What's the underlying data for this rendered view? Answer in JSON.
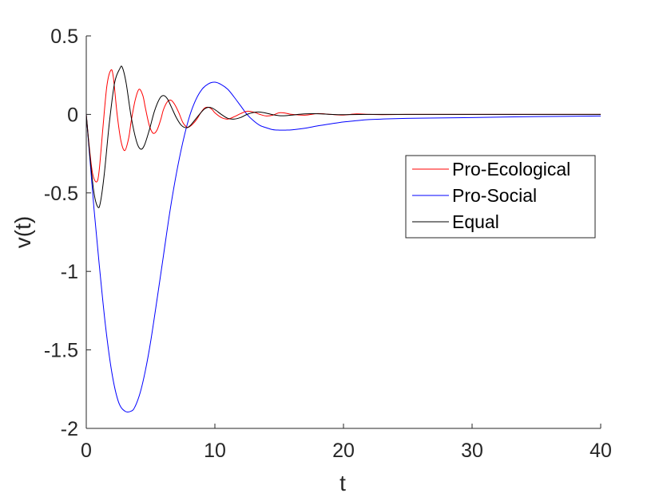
{
  "chart_data": {
    "type": "line",
    "title": "",
    "xlabel": "t",
    "ylabel": "v(t)",
    "xlim": [
      0,
      40
    ],
    "ylim": [
      -2,
      0.5
    ],
    "xticks": [
      0,
      10,
      20,
      30,
      40
    ],
    "xtick_labels": [
      "0",
      "10",
      "20",
      "30",
      "40"
    ],
    "yticks": [
      0.5,
      0,
      -0.5,
      -1,
      -1.5,
      -2
    ],
    "ytick_labels": [
      "0.5",
      "0",
      "-0.5",
      "-1",
      "-1.5",
      "-2"
    ],
    "grid": false,
    "legend_position": "right",
    "series": [
      {
        "name": "Pro-Ecological",
        "color": "#ff0000",
        "x": [
          0,
          0.25,
          0.5,
          0.8,
          1.0,
          1.3,
          1.6,
          1.9,
          2.1,
          2.4,
          2.7,
          3.0,
          3.3,
          3.5,
          3.8,
          4.1,
          4.4,
          4.6,
          4.9,
          5.2,
          5.5,
          5.8,
          6.0,
          6.3,
          6.6,
          6.9,
          7.2,
          7.5,
          7.8,
          8.0,
          8.3,
          8.6,
          8.9,
          9.2,
          9.5,
          9.8,
          10.0,
          10.5,
          11.0,
          11.5,
          12.0,
          12.5,
          13.0,
          13.5,
          14.0,
          14.5,
          15.0,
          15.5,
          16.0,
          17.0,
          18.0,
          19.0,
          20.0,
          21.0,
          22.0,
          23.0,
          25.0,
          28.0,
          32.0,
          36.0,
          40.0
        ],
        "y": [
          0,
          -0.22,
          -0.38,
          -0.43,
          -0.36,
          -0.08,
          0.18,
          0.28,
          0.24,
          0.0,
          -0.17,
          -0.23,
          -0.15,
          -0.04,
          0.09,
          0.16,
          0.12,
          0.04,
          -0.07,
          -0.12,
          -0.1,
          -0.03,
          0.03,
          0.08,
          0.09,
          0.06,
          0.01,
          -0.05,
          -0.08,
          -0.08,
          -0.06,
          -0.03,
          0.01,
          0.04,
          0.045,
          0.03,
          0.01,
          -0.02,
          -0.03,
          -0.015,
          0.005,
          0.02,
          0.015,
          0.0,
          -0.01,
          -0.005,
          0.01,
          0.008,
          0.0,
          -0.005,
          0.005,
          0.0,
          -0.004,
          0.003,
          0.0,
          -0.002,
          0.0,
          0.0,
          0.0,
          0.0,
          0.0
        ]
      },
      {
        "name": "Pro-Social",
        "color": "#0000ff",
        "x": [
          0,
          0.3,
          0.6,
          1.0,
          1.5,
          2.0,
          2.5,
          3.0,
          3.5,
          3.8,
          4.2,
          4.6,
          5.0,
          5.5,
          6.0,
          6.5,
          7.0,
          7.5,
          8.0,
          8.5,
          9.0,
          9.5,
          10.0,
          10.5,
          11.0,
          11.5,
          12.0,
          12.5,
          13.0,
          13.5,
          14.0,
          14.5,
          15.0,
          15.5,
          16.0,
          17.0,
          18.0,
          19.0,
          20.0,
          21.0,
          22.0,
          24.0,
          26.0,
          30.0,
          35.0,
          40.0
        ],
        "y": [
          0,
          -0.3,
          -0.6,
          -0.95,
          -1.35,
          -1.65,
          -1.83,
          -1.89,
          -1.89,
          -1.86,
          -1.77,
          -1.63,
          -1.45,
          -1.18,
          -0.9,
          -0.62,
          -0.38,
          -0.18,
          -0.02,
          0.09,
          0.16,
          0.195,
          0.205,
          0.19,
          0.16,
          0.11,
          0.055,
          0.0,
          -0.04,
          -0.07,
          -0.085,
          -0.097,
          -0.1,
          -0.1,
          -0.098,
          -0.088,
          -0.073,
          -0.06,
          -0.048,
          -0.04,
          -0.033,
          -0.027,
          -0.024,
          -0.02,
          -0.014,
          -0.01
        ]
      },
      {
        "name": "Equal",
        "color": "#000000",
        "x": [
          0,
          0.3,
          0.6,
          0.9,
          1.1,
          1.4,
          1.8,
          2.2,
          2.6,
          2.8,
          3.1,
          3.5,
          3.9,
          4.2,
          4.5,
          4.9,
          5.3,
          5.7,
          6.0,
          6.3,
          6.6,
          7.0,
          7.4,
          7.8,
          8.1,
          8.5,
          8.9,
          9.2,
          9.5,
          9.8,
          10.1,
          10.5,
          11.0,
          11.5,
          12.0,
          12.5,
          13.0,
          13.5,
          14.0,
          14.5,
          15.0,
          15.5,
          16.0,
          17.0,
          18.0,
          19.0,
          20.0,
          22.0,
          25.0,
          30.0,
          35.0,
          40.0
        ],
        "y": [
          0,
          -0.28,
          -0.5,
          -0.59,
          -0.56,
          -0.38,
          -0.05,
          0.2,
          0.29,
          0.3,
          0.2,
          -0.02,
          -0.17,
          -0.22,
          -0.2,
          -0.1,
          0.02,
          0.1,
          0.12,
          0.1,
          0.05,
          -0.02,
          -0.07,
          -0.085,
          -0.07,
          -0.03,
          0.01,
          0.035,
          0.045,
          0.04,
          0.025,
          0.0,
          -0.025,
          -0.03,
          -0.02,
          0.0,
          0.012,
          0.015,
          0.008,
          -0.002,
          -0.008,
          -0.008,
          -0.004,
          0.003,
          0.004,
          0.0,
          -0.002,
          0.0,
          0.0,
          0.0,
          0.0,
          0.0
        ]
      }
    ]
  }
}
